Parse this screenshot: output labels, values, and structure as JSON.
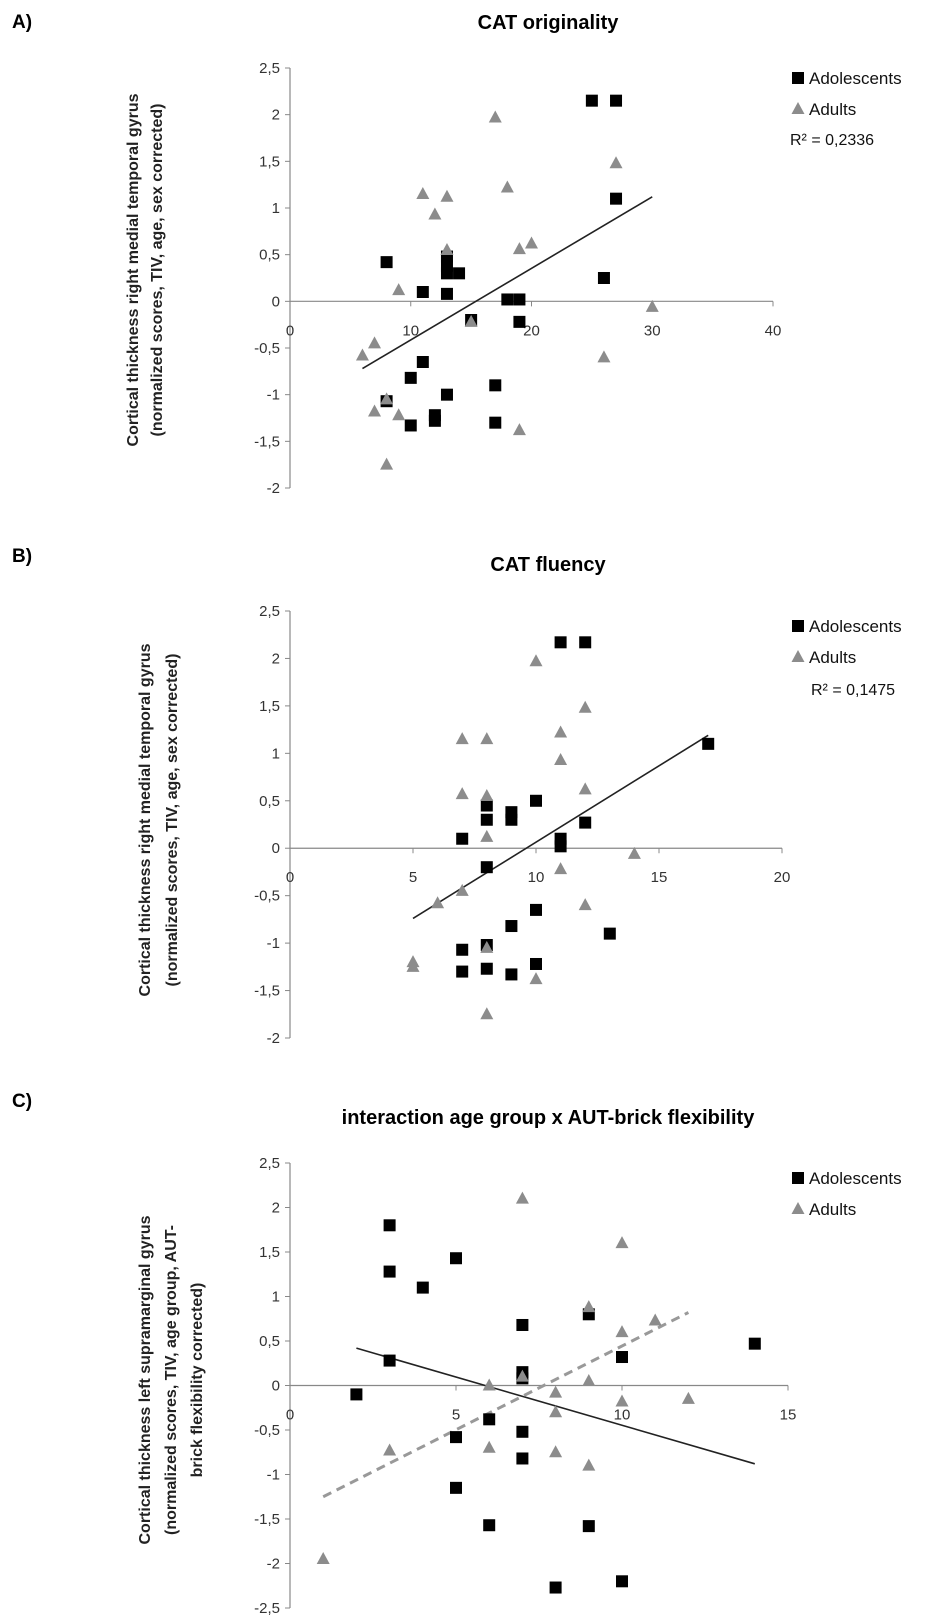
{
  "chart_data": [
    {
      "type": "scatter",
      "panel_label": "A)",
      "title": "CAT originality",
      "ylabel_lines": [
        "Cortical thickness right medial temporal gyrus",
        "(normalized scores, TIV, age, sex corrected)"
      ],
      "xlabel": "",
      "xlim": [
        0,
        40
      ],
      "ylim": [
        -2,
        2.5
      ],
      "x_ticks": [
        "0",
        "10",
        "20",
        "30",
        "40"
      ],
      "x_tick_values": [
        0,
        10,
        20,
        30,
        40
      ],
      "y_ticks": [
        "2,5",
        "2",
        "1,5",
        "1",
        "0,5",
        "0",
        "-0,5",
        "-1",
        "-1,5",
        "-2"
      ],
      "y_tick_values": [
        2.5,
        2,
        1.5,
        1,
        0.5,
        0,
        -0.5,
        -1,
        -1.5,
        -2
      ],
      "legend_position": "top-right",
      "annotation": "R² = 0,2336",
      "series": [
        {
          "name": "Adolescents",
          "marker": "square",
          "color": "#000000",
          "points": [
            [
              8,
              0.42
            ],
            [
              11,
              0.1
            ],
            [
              13,
              0.3
            ],
            [
              13,
              0.38
            ],
            [
              13,
              0.48
            ],
            [
              14,
              0.3
            ],
            [
              13,
              0.08
            ],
            [
              15,
              -0.2
            ],
            [
              18,
              0.02
            ],
            [
              19,
              0.02
            ],
            [
              19,
              -0.22
            ],
            [
              25,
              2.15
            ],
            [
              27,
              2.15
            ],
            [
              27,
              1.1
            ],
            [
              26,
              0.25
            ],
            [
              8,
              -1.07
            ],
            [
              10,
              -0.82
            ],
            [
              11,
              -0.65
            ],
            [
              10,
              -1.33
            ],
            [
              12,
              -1.22
            ],
            [
              12,
              -1.28
            ],
            [
              13,
              -1.0
            ],
            [
              17,
              -0.9
            ],
            [
              17,
              -1.3
            ]
          ]
        },
        {
          "name": "Adults",
          "marker": "triangle",
          "color": "#8c8c8c",
          "points": [
            [
              6,
              -0.58
            ],
            [
              7,
              -0.45
            ],
            [
              7,
              -1.18
            ],
            [
              8,
              -1.05
            ],
            [
              8,
              -1.75
            ],
            [
              9,
              0.12
            ],
            [
              9,
              -1.22
            ],
            [
              11,
              1.15
            ],
            [
              12,
              0.93
            ],
            [
              13,
              1.12
            ],
            [
              13,
              0.55
            ],
            [
              15,
              -0.22
            ],
            [
              17,
              1.97
            ],
            [
              18,
              1.22
            ],
            [
              19,
              0.56
            ],
            [
              20,
              0.62
            ],
            [
              19,
              -1.38
            ],
            [
              26,
              -0.6
            ],
            [
              27,
              1.48
            ],
            [
              30,
              -0.06
            ]
          ]
        }
      ],
      "fits": [
        {
          "x": [
            6,
            30
          ],
          "y": [
            -0.72,
            1.12
          ],
          "style": "solid",
          "color": "#222222"
        }
      ]
    },
    {
      "type": "scatter",
      "panel_label": "B)",
      "title": "CAT fluency",
      "ylabel_lines": [
        "Cortical thickness right medial temporal gyrus",
        "(normalized scores, TIV, age, sex corrected)"
      ],
      "xlabel": "",
      "xlim": [
        0,
        20
      ],
      "ylim": [
        -2,
        2.5
      ],
      "x_ticks": [
        "0",
        "5",
        "10",
        "15",
        "20"
      ],
      "x_tick_values": [
        0,
        5,
        10,
        15,
        20
      ],
      "y_ticks": [
        "2,5",
        "2",
        "1,5",
        "1",
        "0,5",
        "0",
        "-0,5",
        "-1",
        "-1,5",
        "-2"
      ],
      "y_tick_values": [
        2.5,
        2,
        1.5,
        1,
        0.5,
        0,
        -0.5,
        -1,
        -1.5,
        -2
      ],
      "legend_position": "top-right",
      "annotation": "R² = 0,1475",
      "series": [
        {
          "name": "Adolescents",
          "marker": "square",
          "color": "#000000",
          "points": [
            [
              7,
              0.1
            ],
            [
              8,
              0.45
            ],
            [
              8,
              0.3
            ],
            [
              9,
              0.38
            ],
            [
              9,
              0.3
            ],
            [
              10,
              0.5
            ],
            [
              11,
              0.1
            ],
            [
              11,
              0.02
            ],
            [
              8,
              -0.2
            ],
            [
              12,
              0.27
            ],
            [
              11,
              2.17
            ],
            [
              12,
              2.17
            ],
            [
              17,
              1.1
            ],
            [
              7,
              -1.07
            ],
            [
              7,
              -1.3
            ],
            [
              8,
              -1.02
            ],
            [
              8,
              -1.27
            ],
            [
              9,
              -0.82
            ],
            [
              9,
              -1.33
            ],
            [
              10,
              -0.65
            ],
            [
              10,
              -1.22
            ],
            [
              13,
              -0.9
            ]
          ]
        },
        {
          "name": "Adults",
          "marker": "triangle",
          "color": "#8c8c8c",
          "points": [
            [
              5,
              -1.2
            ],
            [
              5,
              -1.25
            ],
            [
              6,
              -0.58
            ],
            [
              7,
              1.15
            ],
            [
              7,
              0.57
            ],
            [
              7,
              -0.45
            ],
            [
              8,
              1.15
            ],
            [
              8,
              0.55
            ],
            [
              8,
              0.12
            ],
            [
              8,
              -1.05
            ],
            [
              8,
              -1.75
            ],
            [
              10,
              1.97
            ],
            [
              10,
              -1.38
            ],
            [
              11,
              1.22
            ],
            [
              11,
              0.93
            ],
            [
              11,
              -0.22
            ],
            [
              12,
              1.48
            ],
            [
              12,
              0.62
            ],
            [
              12,
              -0.6
            ],
            [
              14,
              -0.06
            ]
          ]
        }
      ],
      "fits": [
        {
          "x": [
            5,
            17
          ],
          "y": [
            -0.74,
            1.19
          ],
          "style": "solid",
          "color": "#222222"
        }
      ]
    },
    {
      "type": "scatter",
      "panel_label": "C)",
      "title": "interaction age group x AUT-brick flexibility",
      "ylabel_lines": [
        "Cortical thickness left supramarginal gyrus",
        "(normalized scores, TIV, age group, AUT-",
        "brick flexibility corrected)"
      ],
      "xlabel": "",
      "xlim": [
        0,
        15
      ],
      "ylim": [
        -2.5,
        2.5
      ],
      "x_ticks": [
        "0",
        "5",
        "10",
        "15"
      ],
      "x_tick_values": [
        0,
        5,
        10,
        15
      ],
      "y_ticks": [
        "2,5",
        "2",
        "1,5",
        "1",
        "0,5",
        "0",
        "-0,5",
        "-1",
        "-1,5",
        "-2",
        "-2,5"
      ],
      "y_tick_values": [
        2.5,
        2,
        1.5,
        1,
        0.5,
        0,
        -0.5,
        -1,
        -1.5,
        -2,
        -2.5
      ],
      "legend_position": "top-right",
      "annotation": "",
      "series": [
        {
          "name": "Adolescents",
          "marker": "square",
          "color": "#000000",
          "points": [
            [
              2,
              -0.1
            ],
            [
              3,
              1.8
            ],
            [
              3,
              1.28
            ],
            [
              3,
              0.28
            ],
            [
              4,
              1.1
            ],
            [
              5,
              1.43
            ],
            [
              5,
              -0.58
            ],
            [
              5,
              -1.15
            ],
            [
              6,
              -0.38
            ],
            [
              6,
              -1.57
            ],
            [
              7,
              0.68
            ],
            [
              7,
              0.15
            ],
            [
              7,
              0.08
            ],
            [
              7,
              -0.52
            ],
            [
              7,
              -0.82
            ],
            [
              8,
              -2.27
            ],
            [
              9,
              0.8
            ],
            [
              9,
              -1.58
            ],
            [
              10,
              0.32
            ],
            [
              10,
              -2.2
            ],
            [
              14,
              0.47
            ]
          ]
        },
        {
          "name": "Adults",
          "marker": "triangle",
          "color": "#8c8c8c",
          "points": [
            [
              1,
              -1.95
            ],
            [
              3,
              -0.73
            ],
            [
              6,
              0.0
            ],
            [
              6,
              -0.7
            ],
            [
              7,
              2.1
            ],
            [
              7,
              0.1
            ],
            [
              8,
              -0.08
            ],
            [
              8,
              -0.3
            ],
            [
              8,
              -0.75
            ],
            [
              9,
              0.88
            ],
            [
              9,
              0.05
            ],
            [
              9,
              -0.9
            ],
            [
              10,
              1.6
            ],
            [
              10,
              0.6
            ],
            [
              10,
              -0.18
            ],
            [
              11,
              0.73
            ],
            [
              12,
              -0.15
            ]
          ]
        }
      ],
      "fits": [
        {
          "x": [
            2,
            14
          ],
          "y": [
            0.42,
            -0.88
          ],
          "style": "solid",
          "color": "#222222"
        },
        {
          "x": [
            1,
            12
          ],
          "y": [
            -1.25,
            0.82
          ],
          "style": "dashed",
          "color": "#999999"
        }
      ]
    }
  ]
}
